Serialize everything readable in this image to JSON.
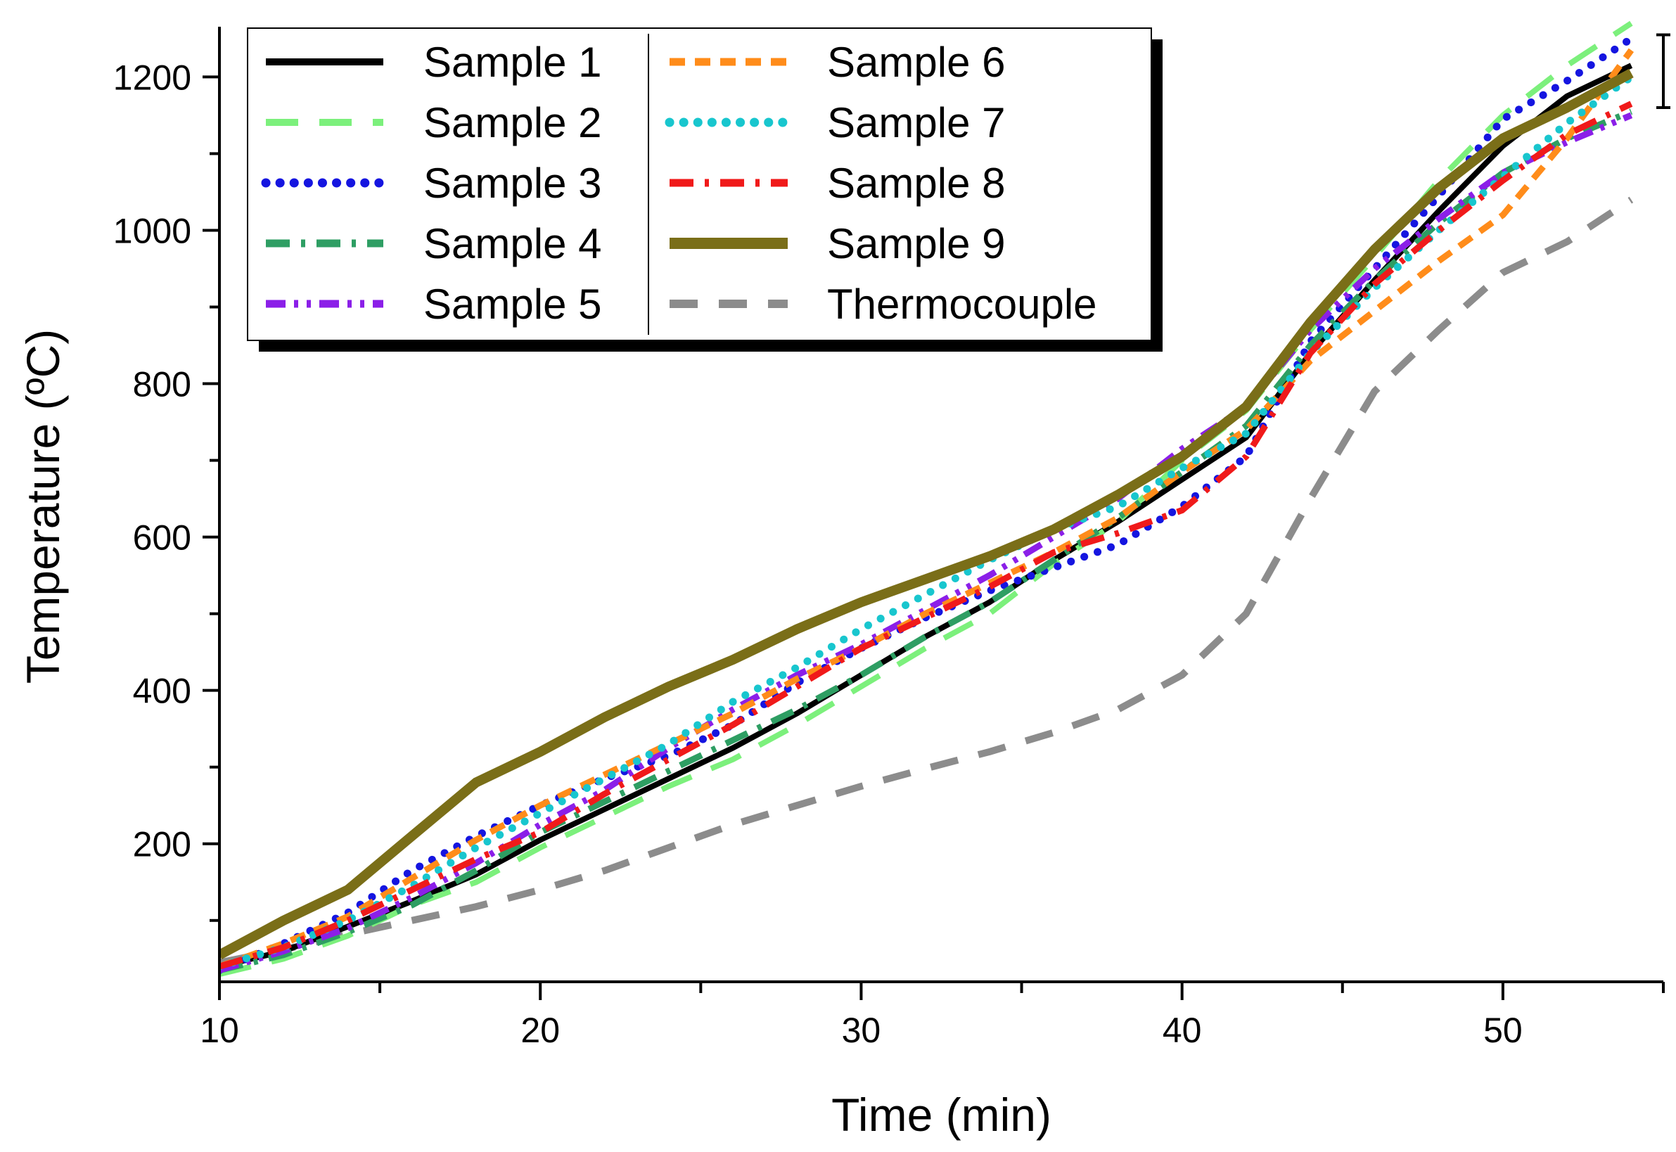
{
  "chart_data": {
    "type": "line",
    "title": "",
    "xlabel": "Time (min)",
    "ylabel": "Temperature (ºC)",
    "xlim": [
      10,
      55
    ],
    "ylim": [
      20,
      1260
    ],
    "x_ticks": [
      10,
      20,
      30,
      40,
      50
    ],
    "y_ticks": [
      200,
      400,
      600,
      800,
      1000,
      1200
    ],
    "grid": false,
    "legend_position": "top-left",
    "series": [
      {
        "name": "Sample 1",
        "color": "#000000",
        "style": "solid",
        "points": [
          [
            10,
            40
          ],
          [
            12,
            60
          ],
          [
            14,
            92
          ],
          [
            16,
            125
          ],
          [
            18,
            160
          ],
          [
            20,
            205
          ],
          [
            22,
            245
          ],
          [
            24,
            285
          ],
          [
            26,
            325
          ],
          [
            28,
            370
          ],
          [
            30,
            420
          ],
          [
            32,
            470
          ],
          [
            34,
            515
          ],
          [
            36,
            570
          ],
          [
            38,
            620
          ],
          [
            40,
            675
          ],
          [
            42,
            730
          ],
          [
            44,
            840
          ],
          [
            46,
            935
          ],
          [
            48,
            1025
          ],
          [
            50,
            1110
          ],
          [
            52,
            1175
          ],
          [
            54,
            1215
          ]
        ]
      },
      {
        "name": "Sample 2",
        "color": "#7CF07C",
        "style": "longdash",
        "points": [
          [
            10,
            30
          ],
          [
            12,
            50
          ],
          [
            14,
            80
          ],
          [
            16,
            120
          ],
          [
            18,
            150
          ],
          [
            20,
            195
          ],
          [
            22,
            235
          ],
          [
            24,
            275
          ],
          [
            26,
            310
          ],
          [
            28,
            355
          ],
          [
            30,
            405
          ],
          [
            32,
            455
          ],
          [
            34,
            500
          ],
          [
            36,
            565
          ],
          [
            38,
            620
          ],
          [
            40,
            700
          ],
          [
            42,
            765
          ],
          [
            44,
            870
          ],
          [
            46,
            965
          ],
          [
            48,
            1065
          ],
          [
            50,
            1150
          ],
          [
            52,
            1215
          ],
          [
            54,
            1270
          ]
        ]
      },
      {
        "name": "Sample 3",
        "color": "#1515E0",
        "style": "dot",
        "points": [
          [
            10,
            35
          ],
          [
            12,
            70
          ],
          [
            14,
            110
          ],
          [
            16,
            165
          ],
          [
            18,
            210
          ],
          [
            20,
            250
          ],
          [
            22,
            285
          ],
          [
            24,
            315
          ],
          [
            26,
            355
          ],
          [
            28,
            410
          ],
          [
            30,
            455
          ],
          [
            32,
            495
          ],
          [
            34,
            530
          ],
          [
            36,
            560
          ],
          [
            38,
            590
          ],
          [
            40,
            640
          ],
          [
            42,
            705
          ],
          [
            44,
            855
          ],
          [
            46,
            950
          ],
          [
            48,
            1045
          ],
          [
            50,
            1145
          ],
          [
            52,
            1195
          ],
          [
            54,
            1250
          ]
        ]
      },
      {
        "name": "Sample 4",
        "color": "#2E9E63",
        "style": "dashdot",
        "points": [
          [
            10,
            35
          ],
          [
            12,
            55
          ],
          [
            14,
            85
          ],
          [
            16,
            120
          ],
          [
            18,
            165
          ],
          [
            20,
            215
          ],
          [
            22,
            255
          ],
          [
            24,
            295
          ],
          [
            26,
            335
          ],
          [
            28,
            375
          ],
          [
            30,
            420
          ],
          [
            32,
            470
          ],
          [
            34,
            515
          ],
          [
            36,
            570
          ],
          [
            38,
            625
          ],
          [
            40,
            685
          ],
          [
            42,
            745
          ],
          [
            44,
            850
          ],
          [
            46,
            935
          ],
          [
            48,
            1010
          ],
          [
            50,
            1075
          ],
          [
            52,
            1120
          ],
          [
            54,
            1155
          ]
        ]
      },
      {
        "name": "Sample 5",
        "color": "#8B1FE8",
        "style": "dashdotdot",
        "points": [
          [
            10,
            35
          ],
          [
            12,
            60
          ],
          [
            14,
            90
          ],
          [
            16,
            130
          ],
          [
            18,
            175
          ],
          [
            20,
            225
          ],
          [
            22,
            270
          ],
          [
            24,
            325
          ],
          [
            26,
            375
          ],
          [
            28,
            420
          ],
          [
            30,
            460
          ],
          [
            32,
            505
          ],
          [
            34,
            550
          ],
          [
            36,
            600
          ],
          [
            38,
            650
          ],
          [
            40,
            715
          ],
          [
            42,
            770
          ],
          [
            44,
            870
          ],
          [
            46,
            950
          ],
          [
            48,
            1015
          ],
          [
            50,
            1075
          ],
          [
            52,
            1115
          ],
          [
            54,
            1150
          ]
        ]
      },
      {
        "name": "Sample 6",
        "color": "#FF8C1A",
        "style": "shortdash",
        "points": [
          [
            10,
            40
          ],
          [
            12,
            70
          ],
          [
            14,
            105
          ],
          [
            16,
            155
          ],
          [
            18,
            205
          ],
          [
            20,
            250
          ],
          [
            22,
            290
          ],
          [
            24,
            330
          ],
          [
            26,
            370
          ],
          [
            28,
            415
          ],
          [
            30,
            455
          ],
          [
            32,
            500
          ],
          [
            34,
            540
          ],
          [
            36,
            580
          ],
          [
            38,
            625
          ],
          [
            40,
            685
          ],
          [
            42,
            740
          ],
          [
            44,
            830
          ],
          [
            46,
            895
          ],
          [
            48,
            960
          ],
          [
            50,
            1020
          ],
          [
            52,
            1120
          ],
          [
            54,
            1235
          ]
        ]
      },
      {
        "name": "Sample 7",
        "color": "#18C6CE",
        "style": "dot",
        "points": [
          [
            10,
            40
          ],
          [
            12,
            65
          ],
          [
            14,
            100
          ],
          [
            16,
            145
          ],
          [
            18,
            195
          ],
          [
            20,
            240
          ],
          [
            22,
            285
          ],
          [
            24,
            330
          ],
          [
            26,
            385
          ],
          [
            28,
            430
          ],
          [
            30,
            480
          ],
          [
            32,
            525
          ],
          [
            34,
            570
          ],
          [
            36,
            610
          ],
          [
            38,
            640
          ],
          [
            40,
            690
          ],
          [
            42,
            735
          ],
          [
            44,
            840
          ],
          [
            46,
            925
          ],
          [
            48,
            1000
          ],
          [
            50,
            1070
          ],
          [
            52,
            1140
          ],
          [
            54,
            1200
          ]
        ]
      },
      {
        "name": "Sample 8",
        "color": "#F01A1A",
        "style": "dashdot",
        "points": [
          [
            10,
            40
          ],
          [
            12,
            65
          ],
          [
            14,
            100
          ],
          [
            16,
            140
          ],
          [
            18,
            180
          ],
          [
            20,
            215
          ],
          [
            22,
            265
          ],
          [
            24,
            310
          ],
          [
            26,
            355
          ],
          [
            28,
            405
          ],
          [
            30,
            455
          ],
          [
            32,
            495
          ],
          [
            34,
            535
          ],
          [
            36,
            580
          ],
          [
            38,
            605
          ],
          [
            40,
            635
          ],
          [
            42,
            705
          ],
          [
            44,
            840
          ],
          [
            46,
            930
          ],
          [
            48,
            1000
          ],
          [
            50,
            1065
          ],
          [
            52,
            1125
          ],
          [
            54,
            1165
          ]
        ]
      },
      {
        "name": "Sample 9",
        "color": "#7A6E18",
        "style": "thick",
        "points": [
          [
            10,
            55
          ],
          [
            12,
            100
          ],
          [
            14,
            140
          ],
          [
            16,
            210
          ],
          [
            18,
            280
          ],
          [
            20,
            320
          ],
          [
            22,
            365
          ],
          [
            24,
            405
          ],
          [
            26,
            440
          ],
          [
            28,
            480
          ],
          [
            30,
            515
          ],
          [
            32,
            545
          ],
          [
            34,
            575
          ],
          [
            36,
            610
          ],
          [
            38,
            655
          ],
          [
            40,
            705
          ],
          [
            42,
            770
          ],
          [
            44,
            880
          ],
          [
            46,
            975
          ],
          [
            48,
            1055
          ],
          [
            50,
            1120
          ],
          [
            52,
            1160
          ],
          [
            54,
            1205
          ]
        ]
      },
      {
        "name": "Thermocouple",
        "color": "#8C8C8C",
        "style": "dash",
        "points": [
          [
            10,
            45
          ],
          [
            12,
            62
          ],
          [
            14,
            82
          ],
          [
            16,
            100
          ],
          [
            18,
            118
          ],
          [
            20,
            140
          ],
          [
            22,
            165
          ],
          [
            24,
            195
          ],
          [
            26,
            225
          ],
          [
            28,
            250
          ],
          [
            30,
            275
          ],
          [
            32,
            298
          ],
          [
            34,
            320
          ],
          [
            36,
            345
          ],
          [
            38,
            375
          ],
          [
            40,
            420
          ],
          [
            42,
            500
          ],
          [
            44,
            650
          ],
          [
            46,
            790
          ],
          [
            48,
            870
          ],
          [
            50,
            945
          ],
          [
            52,
            985
          ],
          [
            54,
            1040
          ]
        ]
      }
    ]
  }
}
